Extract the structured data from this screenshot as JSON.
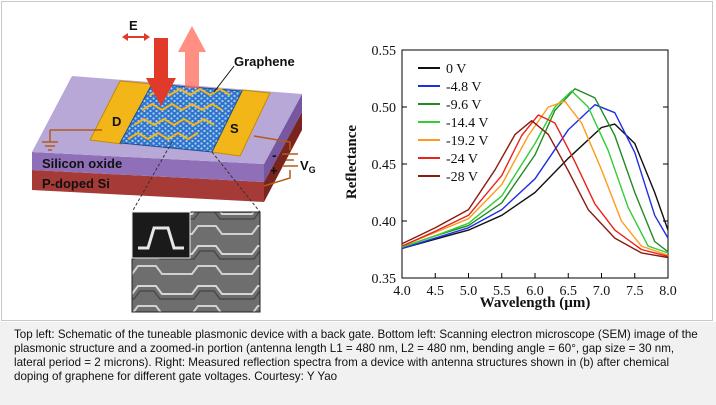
{
  "schematic": {
    "labels": {
      "e_field": "E",
      "graphene": "Graphene",
      "drain": "D",
      "source": "S",
      "oxide": "Silicon oxide",
      "substrate": "P-doped Si",
      "gate_minus": "-",
      "gate_plus": "+",
      "gate_v": "V",
      "gate_sub": "G"
    },
    "colors": {
      "oxide_top": "#b8a8d8",
      "oxide_side": "#8f6fb8",
      "substrate": "#a63a36",
      "electrode": "#f2b619",
      "graphene": "#2f74c8",
      "arrow": "#e23a2a"
    }
  },
  "chart_data": {
    "type": "line",
    "xlabel": "Wavelength (µm)",
    "ylabel": "Reflectance",
    "xlim": [
      4.0,
      8.0
    ],
    "ylim": [
      0.35,
      0.55
    ],
    "xticks": [
      "4.0",
      "4.5",
      "5.0",
      "5.5",
      "6.0",
      "6.5",
      "7.0",
      "7.5",
      "8.0"
    ],
    "yticks": [
      "0.35",
      "0.40",
      "0.45",
      "0.50",
      "0.55"
    ],
    "legend_position": "top-left",
    "grid": false,
    "series": [
      {
        "name": "0 V",
        "color": "#111111",
        "x": [
          4.0,
          4.5,
          5.0,
          5.5,
          6.0,
          6.5,
          7.0,
          7.2,
          7.5,
          7.8,
          8.0
        ],
        "y": [
          0.376,
          0.384,
          0.392,
          0.405,
          0.425,
          0.455,
          0.482,
          0.485,
          0.468,
          0.425,
          0.392
        ]
      },
      {
        "name": "-4.8 V",
        "color": "#1f2fe6",
        "x": [
          4.0,
          4.5,
          5.0,
          5.5,
          6.0,
          6.5,
          6.9,
          7.2,
          7.5,
          7.8,
          8.0
        ],
        "y": [
          0.376,
          0.385,
          0.394,
          0.41,
          0.437,
          0.48,
          0.502,
          0.495,
          0.46,
          0.405,
          0.385
        ]
      },
      {
        "name": "-9.6 V",
        "color": "#228b22",
        "x": [
          4.0,
          4.5,
          5.0,
          5.5,
          6.0,
          6.3,
          6.6,
          6.9,
          7.2,
          7.5,
          7.8,
          8.0
        ],
        "y": [
          0.377,
          0.387,
          0.396,
          0.416,
          0.458,
          0.497,
          0.516,
          0.508,
          0.475,
          0.425,
          0.382,
          0.373
        ]
      },
      {
        "name": "-14.4 V",
        "color": "#32cd32",
        "x": [
          4.0,
          4.5,
          5.0,
          5.5,
          6.0,
          6.3,
          6.55,
          6.8,
          7.1,
          7.4,
          7.7,
          8.0
        ],
        "y": [
          0.377,
          0.387,
          0.398,
          0.422,
          0.468,
          0.5,
          0.514,
          0.5,
          0.462,
          0.412,
          0.378,
          0.372
        ]
      },
      {
        "name": "-19.2 V",
        "color": "#ff9a1f",
        "x": [
          4.0,
          4.5,
          5.0,
          5.5,
          5.9,
          6.2,
          6.45,
          6.7,
          7.0,
          7.3,
          7.6,
          8.0
        ],
        "y": [
          0.378,
          0.39,
          0.402,
          0.432,
          0.475,
          0.5,
          0.505,
          0.486,
          0.445,
          0.4,
          0.378,
          0.37
        ]
      },
      {
        "name": "-24 V",
        "color": "#e8231a",
        "x": [
          4.0,
          4.5,
          5.0,
          5.5,
          5.8,
          6.05,
          6.3,
          6.6,
          6.9,
          7.2,
          7.6,
          8.0
        ],
        "y": [
          0.378,
          0.391,
          0.405,
          0.44,
          0.475,
          0.493,
          0.486,
          0.452,
          0.415,
          0.392,
          0.375,
          0.369
        ]
      },
      {
        "name": "-28 V",
        "color": "#8b1a10",
        "x": [
          4.0,
          4.5,
          5.0,
          5.4,
          5.7,
          5.95,
          6.2,
          6.5,
          6.8,
          7.2,
          7.6,
          8.0
        ],
        "y": [
          0.38,
          0.394,
          0.41,
          0.445,
          0.476,
          0.488,
          0.476,
          0.444,
          0.41,
          0.385,
          0.372,
          0.368
        ]
      }
    ]
  },
  "caption": {
    "text": "Top left: Schematic of the tuneable plasmonic device with a back gate. Bottom left: Scanning electron microscope (SEM) image of the plasmonic structure and a zoomed-in portion (antenna length L1 = 480 nm, L2 = 480 nm, bending angle = 60°, gap size = 30 nm, lateral period = 2 microns). Right: Measured reflection spectra from a device with antenna structures shown in (b) after chemical doping of graphene for different gate voltages. Courtesy: Y Yao"
  }
}
